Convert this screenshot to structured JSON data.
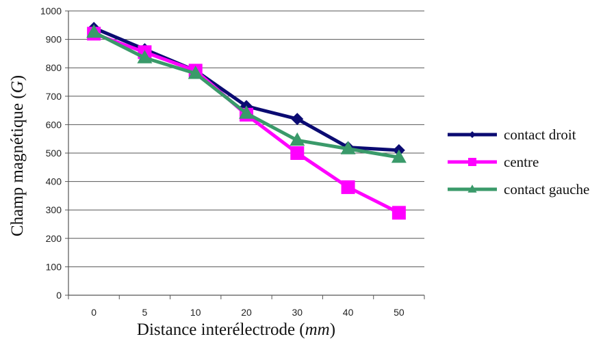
{
  "chart_data": {
    "type": "line",
    "title": "",
    "xlabel": {
      "main": "Distance interélectrode (",
      "unit": "mm",
      "close": ")"
    },
    "ylabel": {
      "main": "Champ magnétique (",
      "unit": "G",
      "close": ")"
    },
    "categories": [
      "0",
      "5",
      "10",
      "20",
      "30",
      "40",
      "50"
    ],
    "ylim": [
      0,
      1000
    ],
    "yticks": [
      0,
      100,
      200,
      300,
      400,
      500,
      600,
      700,
      800,
      900,
      1000
    ],
    "grid": true,
    "legend_position": "right",
    "series": [
      {
        "name": "contact droit",
        "color": "#0b0b72",
        "marker": "diamond",
        "values": [
          940,
          865,
          790,
          665,
          620,
          520,
          510
        ]
      },
      {
        "name": "centre",
        "color": "#ff00ff",
        "marker": "square",
        "values": [
          920,
          855,
          790,
          635,
          500,
          380,
          290
        ]
      },
      {
        "name": "contact gauche",
        "color": "#3a9a6a",
        "marker": "triangle",
        "values": [
          925,
          835,
          780,
          640,
          545,
          515,
          485
        ]
      }
    ]
  }
}
